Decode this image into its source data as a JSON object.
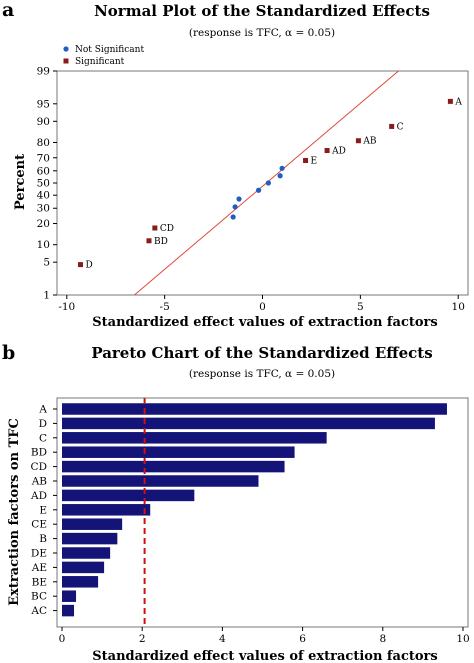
{
  "chart_data": [
    {
      "type": "scatter",
      "panel_label": "a",
      "title": "Normal Plot of the Standardized Effects",
      "subtitle": "(response is TFC, α = 0.05)",
      "xlabel": "Standardized effect values of extraction factors",
      "ylabel": "Percent",
      "xlim": [
        -10.5,
        10.5
      ],
      "y_scale": "normal probability",
      "ylim": [
        1,
        99
      ],
      "x_ticks": [
        -10,
        -5,
        0,
        5,
        10
      ],
      "y_ticks": [
        1,
        5,
        10,
        20,
        30,
        40,
        50,
        60,
        70,
        80,
        90,
        95,
        99
      ],
      "legend": [
        {
          "name": "Not Significant",
          "marker": "circle",
          "color": "#1f5fbf"
        },
        {
          "name": "Significant",
          "marker": "square",
          "color": "#8b1a1a"
        }
      ],
      "legend_position": "top-left",
      "fit_line": {
        "color": "#e04a3a",
        "x_at_p50": 0.2,
        "slope_x_per_z": 2.9
      },
      "series": [
        {
          "name": "Significant",
          "points": [
            {
              "label": "D",
              "x": -9.3,
              "y": 4.5
            },
            {
              "label": "BD",
              "x": -5.8,
              "y": 11.5
            },
            {
              "label": "CD",
              "x": -5.5,
              "y": 17.5
            },
            {
              "label": "E",
              "x": 2.2,
              "y": 68
            },
            {
              "label": "AD",
              "x": 3.3,
              "y": 75
            },
            {
              "label": "AB",
              "x": 4.9,
              "y": 81
            },
            {
              "label": "C",
              "x": 6.6,
              "y": 88
            },
            {
              "label": "A",
              "x": 9.6,
              "y": 95.5
            }
          ]
        },
        {
          "name": "Not Significant",
          "points": [
            {
              "label": "",
              "x": -1.5,
              "y": 24
            },
            {
              "label": "",
              "x": -1.4,
              "y": 31
            },
            {
              "label": "",
              "x": -1.2,
              "y": 37
            },
            {
              "label": "",
              "x": -0.2,
              "y": 44
            },
            {
              "label": "",
              "x": 0.3,
              "y": 50
            },
            {
              "label": "",
              "x": 0.9,
              "y": 56
            },
            {
              "label": "",
              "x": 1.0,
              "y": 62
            }
          ]
        }
      ]
    },
    {
      "type": "bar",
      "orientation": "horizontal",
      "panel_label": "b",
      "title": "Pareto Chart of the Standardized Effects",
      "subtitle": "(response is TFC, α = 0.05)",
      "xlabel": "Standardized effect values of extraction factors",
      "ylabel": "Extraction factors on TFC",
      "xlim": [
        0,
        10
      ],
      "x_ticks": [
        0,
        2,
        4,
        6,
        8,
        10
      ],
      "bar_color": "#141478",
      "reference_line": {
        "x": 2.06,
        "color": "#cc1111",
        "style": "dashed"
      },
      "categories": [
        "A",
        "D",
        "C",
        "BD",
        "CD",
        "AB",
        "AD",
        "E",
        "CE",
        "B",
        "DE",
        "AE",
        "BE",
        "BC",
        "AC"
      ],
      "values": [
        9.6,
        9.3,
        6.6,
        5.8,
        5.55,
        4.9,
        3.3,
        2.2,
        1.5,
        1.38,
        1.2,
        1.05,
        0.9,
        0.35,
        0.3
      ]
    }
  ]
}
